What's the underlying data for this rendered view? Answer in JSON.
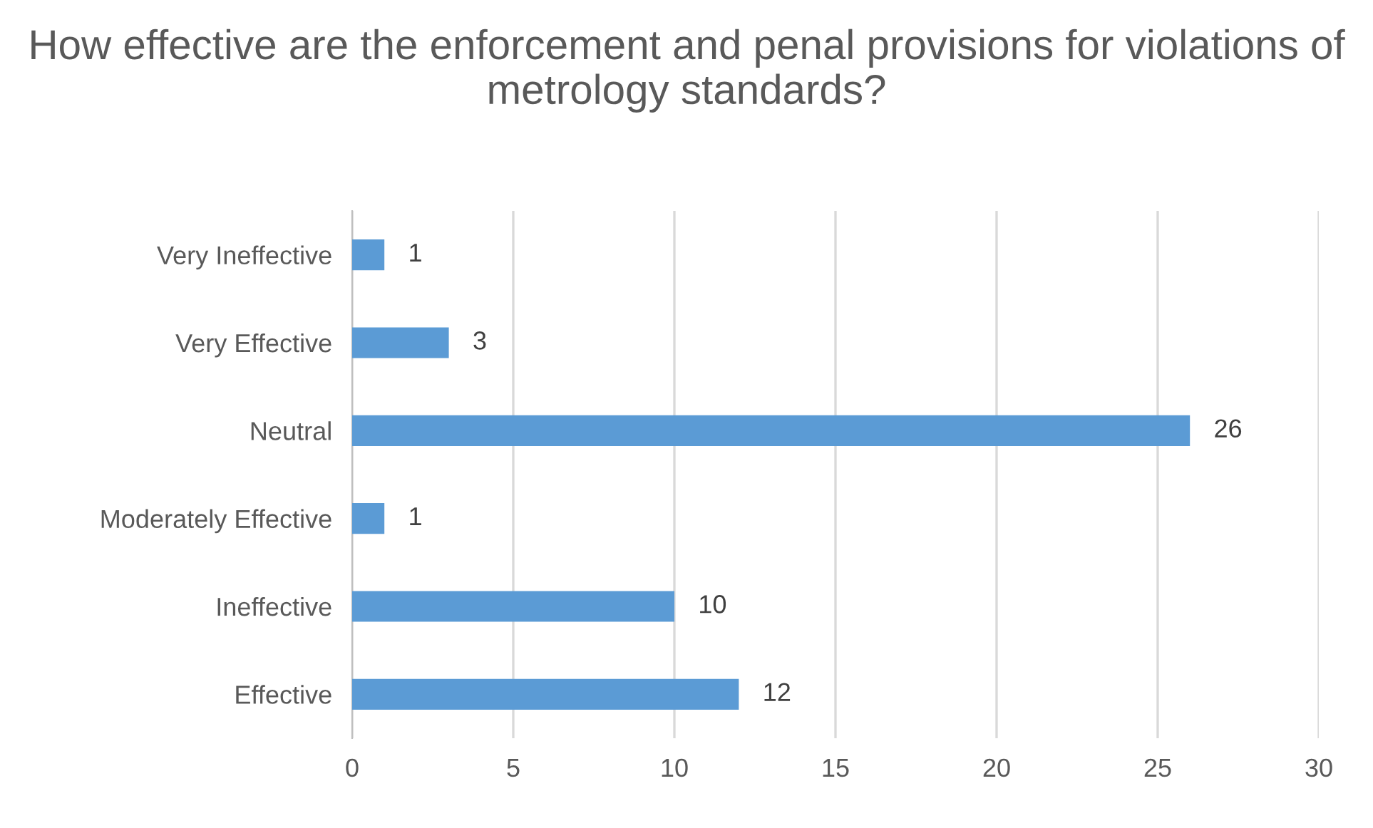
{
  "chart_data": {
    "type": "bar",
    "orientation": "horizontal",
    "title": "How effective are the enforcement and penal provisions for violations of metrology standards?",
    "categories": [
      "Very Ineffective",
      "Very Effective",
      "Neutral",
      "Moderately Effective",
      "Ineffective",
      "Effective"
    ],
    "values": [
      1,
      3,
      26,
      1,
      10,
      12
    ],
    "color": "#5b9bd5",
    "xlim": [
      0,
      30
    ],
    "xticks": [
      0,
      5,
      10,
      15,
      20,
      25,
      30
    ],
    "grid": "x",
    "data_labels": true,
    "legend": false
  }
}
